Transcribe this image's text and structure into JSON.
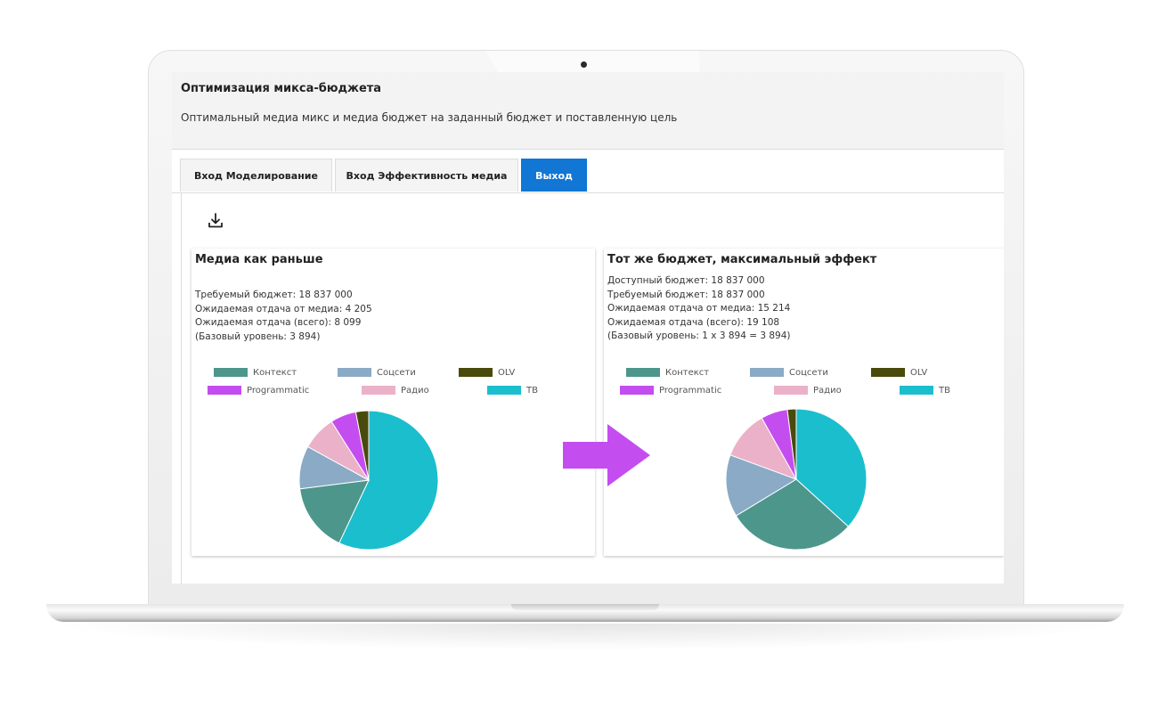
{
  "app": {
    "title": "Оптимизация микса-бюджета",
    "subtitle": "Оптимальный медиа микс и медиа бюджет на заданный бюджет и поставленную цель"
  },
  "tabs": [
    {
      "label": "Вход Моделирование",
      "active": false
    },
    {
      "label": "Вход Эффективность медиа",
      "active": false
    },
    {
      "label": "Выход",
      "active": true
    }
  ],
  "toolbar": {
    "download_icon": "download-icon"
  },
  "colors": {
    "accent": "#1176d4",
    "arrow": "#c44df0",
    "Контекст": "#4d968b",
    "Соцсети": "#8aaac6",
    "OLV": "#4a4a0c",
    "Programmatic": "#c44df0",
    "Радио": "#ebb1c8",
    "ТВ": "#1bbecd"
  },
  "panels": [
    {
      "title": "Медиа как раньше",
      "stats": [
        "Требуемый бюджет: 18 837 000",
        "Ожидаемая отдача от медиа: 4 205",
        "Ожидаемая отдача (всего): 8 099",
        "(Базовый уровень: 3 894)"
      ]
    },
    {
      "title": "Тот же бюджет, максимальный эффект",
      "stats": [
        "Доступный бюджет: 18 837 000",
        "Требуемый бюджет: 18 837 000",
        "Ожидаемая отдача от медиа: 15 214",
        "Ожидаемая отдача (всего): 19 108",
        "(Базовый уровень: 1 x 3 894 = 3 894)"
      ]
    }
  ],
  "legend": [
    "Контекст",
    "Соцсети",
    "OLV",
    "Programmatic",
    "Радио",
    "ТВ"
  ],
  "chart_data": [
    {
      "type": "pie",
      "title": "Медиа как раньше",
      "categories": [
        "ТВ",
        "Контекст",
        "Соцсети",
        "Радио",
        "Programmatic",
        "OLV"
      ],
      "values": [
        57,
        16,
        10,
        8,
        6,
        3
      ]
    },
    {
      "type": "pie",
      "title": "Тот же бюджет, максимальный эффект",
      "categories": [
        "ТВ",
        "Контекст",
        "Соцсети",
        "Радио",
        "Programmatic",
        "OLV"
      ],
      "values": [
        36,
        29,
        14,
        11,
        6,
        2
      ]
    }
  ]
}
